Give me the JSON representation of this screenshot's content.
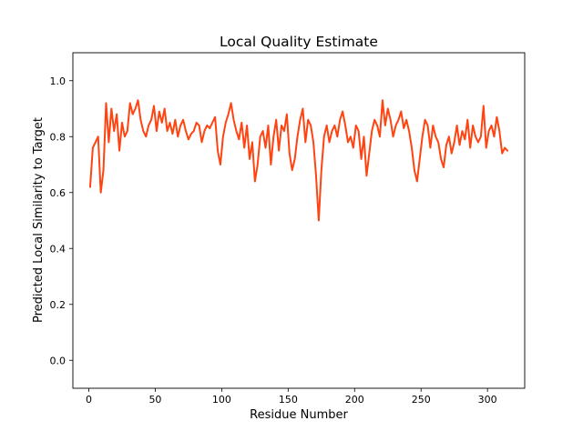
{
  "chart_data": {
    "type": "line",
    "title": "Local Quality Estimate",
    "xlabel": "Residue Number",
    "ylabel": "Predicted Local Similarity to Target",
    "xlim": [
      -12,
      328
    ],
    "ylim": [
      -0.1,
      1.1
    ],
    "xticks": [
      0,
      50,
      100,
      150,
      200,
      250,
      300
    ],
    "yticks": [
      0.0,
      0.2,
      0.4,
      0.6,
      0.8,
      1.0
    ],
    "xtick_labels": [
      "0",
      "50",
      "100",
      "150",
      "200",
      "250",
      "300"
    ],
    "ytick_labels": [
      "0.0",
      "0.2",
      "0.4",
      "0.6",
      "0.8",
      "1.0"
    ],
    "grid": false,
    "series": [
      {
        "color": "#ff4311",
        "x": [
          1,
          3,
          5,
          7,
          9,
          11,
          13,
          15,
          17,
          19,
          21,
          23,
          25,
          27,
          29,
          31,
          33,
          35,
          37,
          39,
          41,
          43,
          45,
          47,
          49,
          51,
          53,
          55,
          57,
          59,
          61,
          63,
          65,
          67,
          69,
          71,
          73,
          75,
          77,
          79,
          81,
          83,
          85,
          87,
          89,
          91,
          93,
          95,
          97,
          99,
          101,
          103,
          105,
          107,
          109,
          111,
          113,
          115,
          117,
          119,
          121,
          123,
          125,
          127,
          129,
          131,
          133,
          135,
          137,
          139,
          141,
          143,
          145,
          147,
          149,
          151,
          153,
          155,
          157,
          159,
          161,
          163,
          165,
          167,
          169,
          171,
          173,
          175,
          177,
          179,
          181,
          183,
          185,
          187,
          189,
          191,
          193,
          195,
          197,
          199,
          201,
          203,
          205,
          207,
          209,
          211,
          213,
          215,
          217,
          219,
          221,
          223,
          225,
          227,
          229,
          231,
          233,
          235,
          237,
          239,
          241,
          243,
          245,
          247,
          249,
          251,
          253,
          255,
          257,
          259,
          261,
          263,
          265,
          267,
          269,
          271,
          273,
          275,
          277,
          279,
          281,
          283,
          285,
          287,
          289,
          291,
          293,
          295,
          297,
          299,
          301,
          303,
          305,
          307,
          309,
          311,
          313,
          315
        ],
        "y": [
          0.62,
          0.76,
          0.78,
          0.8,
          0.6,
          0.68,
          0.92,
          0.78,
          0.9,
          0.82,
          0.88,
          0.75,
          0.85,
          0.8,
          0.82,
          0.92,
          0.88,
          0.9,
          0.93,
          0.86,
          0.82,
          0.8,
          0.84,
          0.86,
          0.91,
          0.82,
          0.89,
          0.85,
          0.9,
          0.82,
          0.85,
          0.81,
          0.86,
          0.8,
          0.84,
          0.86,
          0.82,
          0.79,
          0.81,
          0.82,
          0.85,
          0.84,
          0.78,
          0.82,
          0.84,
          0.83,
          0.85,
          0.87,
          0.75,
          0.7,
          0.8,
          0.85,
          0.88,
          0.92,
          0.86,
          0.82,
          0.79,
          0.85,
          0.76,
          0.84,
          0.72,
          0.78,
          0.64,
          0.7,
          0.8,
          0.82,
          0.76,
          0.84,
          0.7,
          0.8,
          0.86,
          0.75,
          0.84,
          0.82,
          0.88,
          0.74,
          0.68,
          0.72,
          0.8,
          0.86,
          0.9,
          0.78,
          0.86,
          0.84,
          0.78,
          0.66,
          0.5,
          0.68,
          0.8,
          0.84,
          0.78,
          0.82,
          0.84,
          0.8,
          0.86,
          0.89,
          0.84,
          0.78,
          0.8,
          0.76,
          0.84,
          0.82,
          0.72,
          0.8,
          0.66,
          0.74,
          0.82,
          0.86,
          0.84,
          0.8,
          0.93,
          0.84,
          0.9,
          0.86,
          0.8,
          0.84,
          0.86,
          0.89,
          0.83,
          0.86,
          0.82,
          0.76,
          0.68,
          0.64,
          0.72,
          0.8,
          0.86,
          0.84,
          0.76,
          0.84,
          0.8,
          0.78,
          0.72,
          0.69,
          0.77,
          0.8,
          0.74,
          0.78,
          0.84,
          0.77,
          0.82,
          0.79,
          0.86,
          0.76,
          0.84,
          0.8,
          0.78,
          0.8,
          0.91,
          0.76,
          0.82,
          0.84,
          0.8,
          0.87,
          0.82,
          0.74,
          0.76,
          0.75
        ]
      }
    ]
  }
}
